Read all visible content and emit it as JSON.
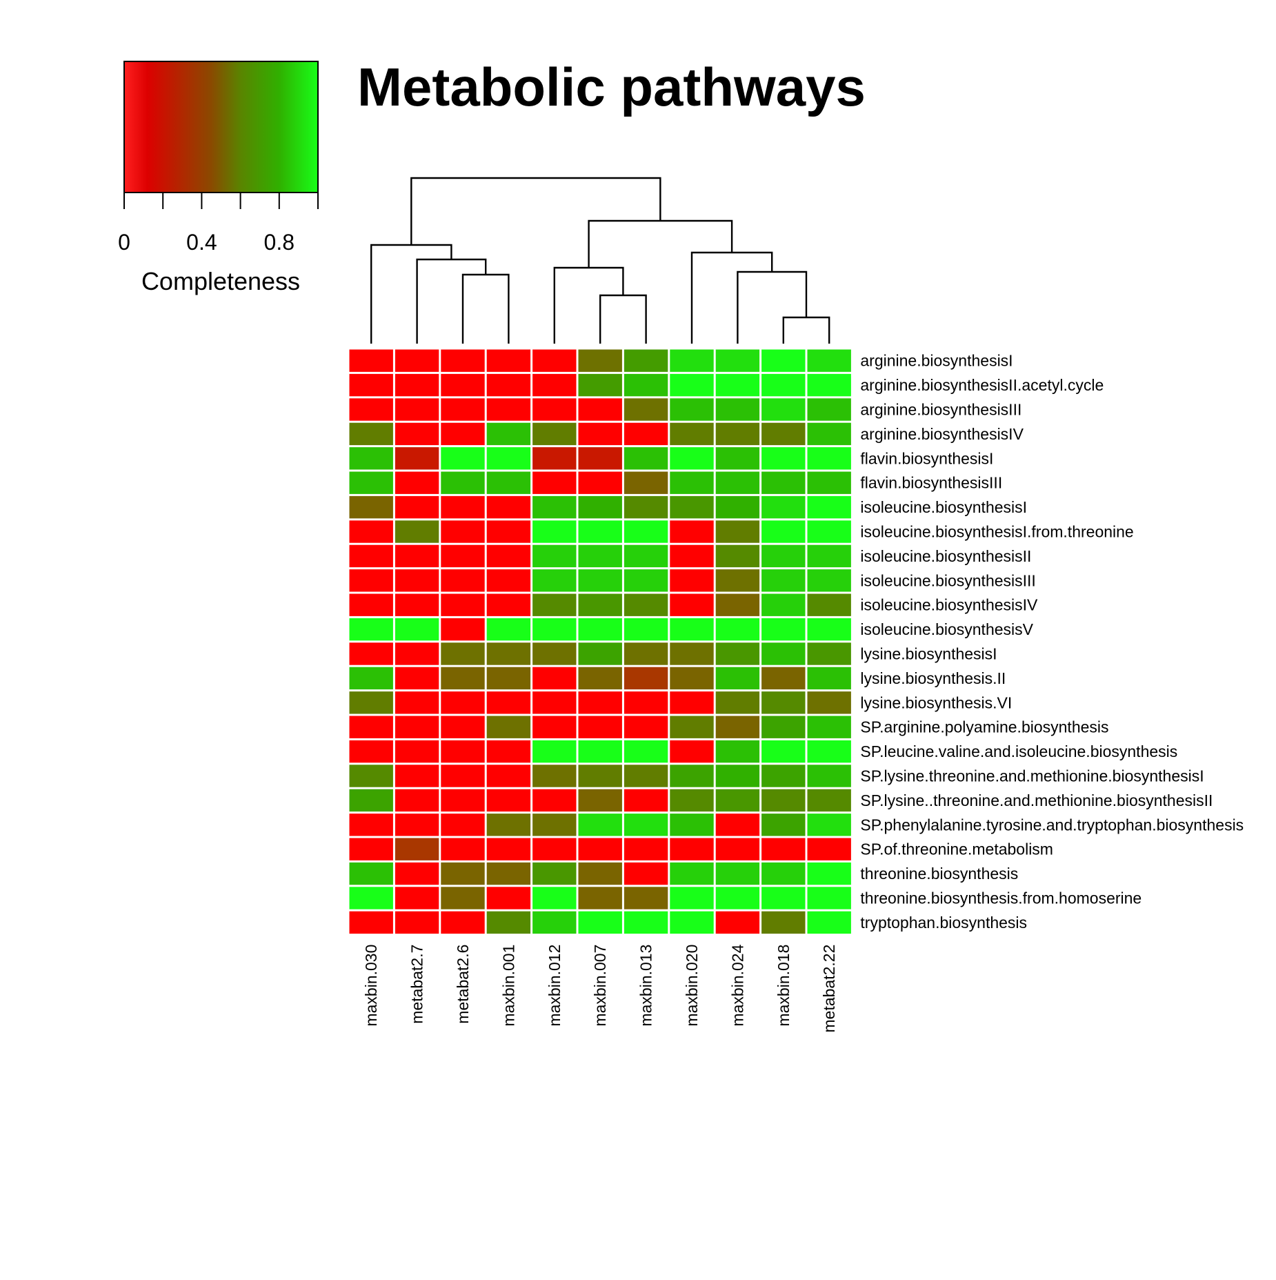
{
  "chart_data": {
    "type": "heatmap",
    "title": "Metabolic pathways",
    "legend": {
      "label": "Completeness",
      "ticks": [
        "0",
        "0.4",
        "0.8"
      ],
      "tick_values": [
        0,
        0.2,
        0.4,
        0.6,
        0.8,
        1.0
      ],
      "labeled_tick_values": [
        0,
        0.4,
        0.8
      ],
      "range": [
        0,
        1
      ],
      "placement": "top-left",
      "colors": [
        "#ff0000",
        "#e00000",
        "#7a5a00",
        "#2aa800",
        "#18ff18"
      ]
    },
    "columns": [
      "maxbin.030",
      "metabat2.7",
      "metabat2.6",
      "maxbin.001",
      "maxbin.012",
      "maxbin.007",
      "maxbin.013",
      "maxbin.020",
      "maxbin.024",
      "maxbin.018",
      "metabat2.22"
    ],
    "rows": [
      "arginine.biosynthesisI",
      "arginine.biosynthesisII.acetyl.cycle",
      "arginine.biosynthesisIII",
      "arginine.biosynthesisIV",
      "flavin.biosynthesisI",
      "flavin.biosynthesisIII",
      "isoleucine.biosynthesisI",
      "isoleucine.biosynthesisI.from.threonine",
      "isoleucine.biosynthesisII",
      "isoleucine.biosynthesisIII",
      "isoleucine.biosynthesisIV",
      "isoleucine.biosynthesisV",
      "lysine.biosynthesisI",
      "lysine.biosynthesis.II",
      "lysine.biosynthesis.VI",
      "SP.arginine.polyamine.biosynthesis",
      "SP.leucine.valine.and.isoleucine.biosynthesis",
      "SP.lysine.threonine.and.methionine.biosynthesisI",
      "SP.lysine..threonine.and.methionine.biosynthesisII",
      "SP.phenylalanine.tyrosine.and.tryptophan.biosynthesis",
      "SP.of.threonine.metabolism",
      "threonine.biosynthesis",
      "threonine.biosynthesis.from.homoserine",
      "tryptophan.biosynthesis"
    ],
    "values": [
      [
        0,
        0,
        0,
        0,
        0,
        0.5,
        0.67,
        0.9,
        0.9,
        1,
        0.9
      ],
      [
        0,
        0,
        0,
        0,
        0,
        0.67,
        0.8,
        1,
        1,
        1,
        1
      ],
      [
        0,
        0,
        0,
        0,
        0,
        0,
        0.5,
        0.8,
        0.8,
        0.9,
        0.8
      ],
      [
        0.55,
        0,
        0,
        0.8,
        0.55,
        0,
        0,
        0.55,
        0.55,
        0.55,
        0.8
      ],
      [
        0.8,
        0.2,
        1,
        1,
        0.2,
        0.2,
        0.8,
        1,
        0.8,
        1,
        1
      ],
      [
        0.8,
        0,
        0.8,
        0.8,
        0,
        0,
        0.45,
        0.8,
        0.8,
        0.8,
        0.8
      ],
      [
        0.45,
        0,
        0,
        0,
        0.8,
        0.75,
        0.6,
        0.65,
        0.75,
        0.9,
        1
      ],
      [
        0,
        0.55,
        0,
        0,
        1,
        1,
        1,
        0,
        0.55,
        1,
        1
      ],
      [
        0,
        0,
        0,
        0,
        0.85,
        0.85,
        0.85,
        0,
        0.6,
        0.85,
        0.85
      ],
      [
        0,
        0,
        0,
        0,
        0.85,
        0.85,
        0.85,
        0,
        0.5,
        0.85,
        0.85
      ],
      [
        0,
        0,
        0,
        0,
        0.6,
        0.65,
        0.6,
        0,
        0.45,
        0.85,
        0.6
      ],
      [
        1,
        1,
        0,
        1,
        1,
        1,
        1,
        1,
        1,
        1,
        1
      ],
      [
        0,
        0,
        0.5,
        0.5,
        0.5,
        0.7,
        0.5,
        0.5,
        0.65,
        0.8,
        0.65
      ],
      [
        0.8,
        0,
        0.45,
        0.45,
        0,
        0.45,
        0.3,
        0.45,
        0.8,
        0.45,
        0.8
      ],
      [
        0.55,
        0,
        0,
        0,
        0,
        0,
        0,
        0,
        0.55,
        0.6,
        0.5
      ],
      [
        0,
        0,
        0,
        0.5,
        0,
        0,
        0,
        0.55,
        0.45,
        0.7,
        0.8
      ],
      [
        0,
        0,
        0,
        0,
        1,
        1,
        1,
        0,
        0.8,
        1,
        1
      ],
      [
        0.6,
        0,
        0,
        0,
        0.5,
        0.55,
        0.55,
        0.7,
        0.75,
        0.7,
        0.8
      ],
      [
        0.7,
        0,
        0,
        0,
        0,
        0.45,
        0,
        0.6,
        0.65,
        0.6,
        0.6
      ],
      [
        0,
        0,
        0,
        0.5,
        0.5,
        0.9,
        0.9,
        0.8,
        0,
        0.7,
        0.9
      ],
      [
        0,
        0.3,
        0,
        0,
        0,
        0,
        0,
        0,
        0,
        0,
        0
      ],
      [
        0.8,
        0,
        0.45,
        0.45,
        0.65,
        0.45,
        0,
        0.85,
        0.85,
        0.85,
        1
      ],
      [
        1,
        0,
        0.45,
        0,
        1,
        0.45,
        0.45,
        1,
        1,
        1,
        1
      ],
      [
        0,
        0,
        0,
        0.6,
        0.85,
        1,
        1,
        1,
        0,
        0.55,
        1
      ]
    ],
    "column_order_note": "columns are hierarchically clustered",
    "dendrogram": {
      "merges": [
        [
          9,
          10
        ],
        [
          5,
          6
        ],
        [
          2,
          3
        ],
        [
          8,
          "m0"
        ],
        [
          1,
          "m2"
        ],
        [
          4,
          "m1"
        ],
        [
          7,
          "m3"
        ],
        [
          0,
          "m4"
        ],
        [
          "m5",
          "m6"
        ],
        [
          "m7",
          "m8"
        ]
      ]
    }
  }
}
